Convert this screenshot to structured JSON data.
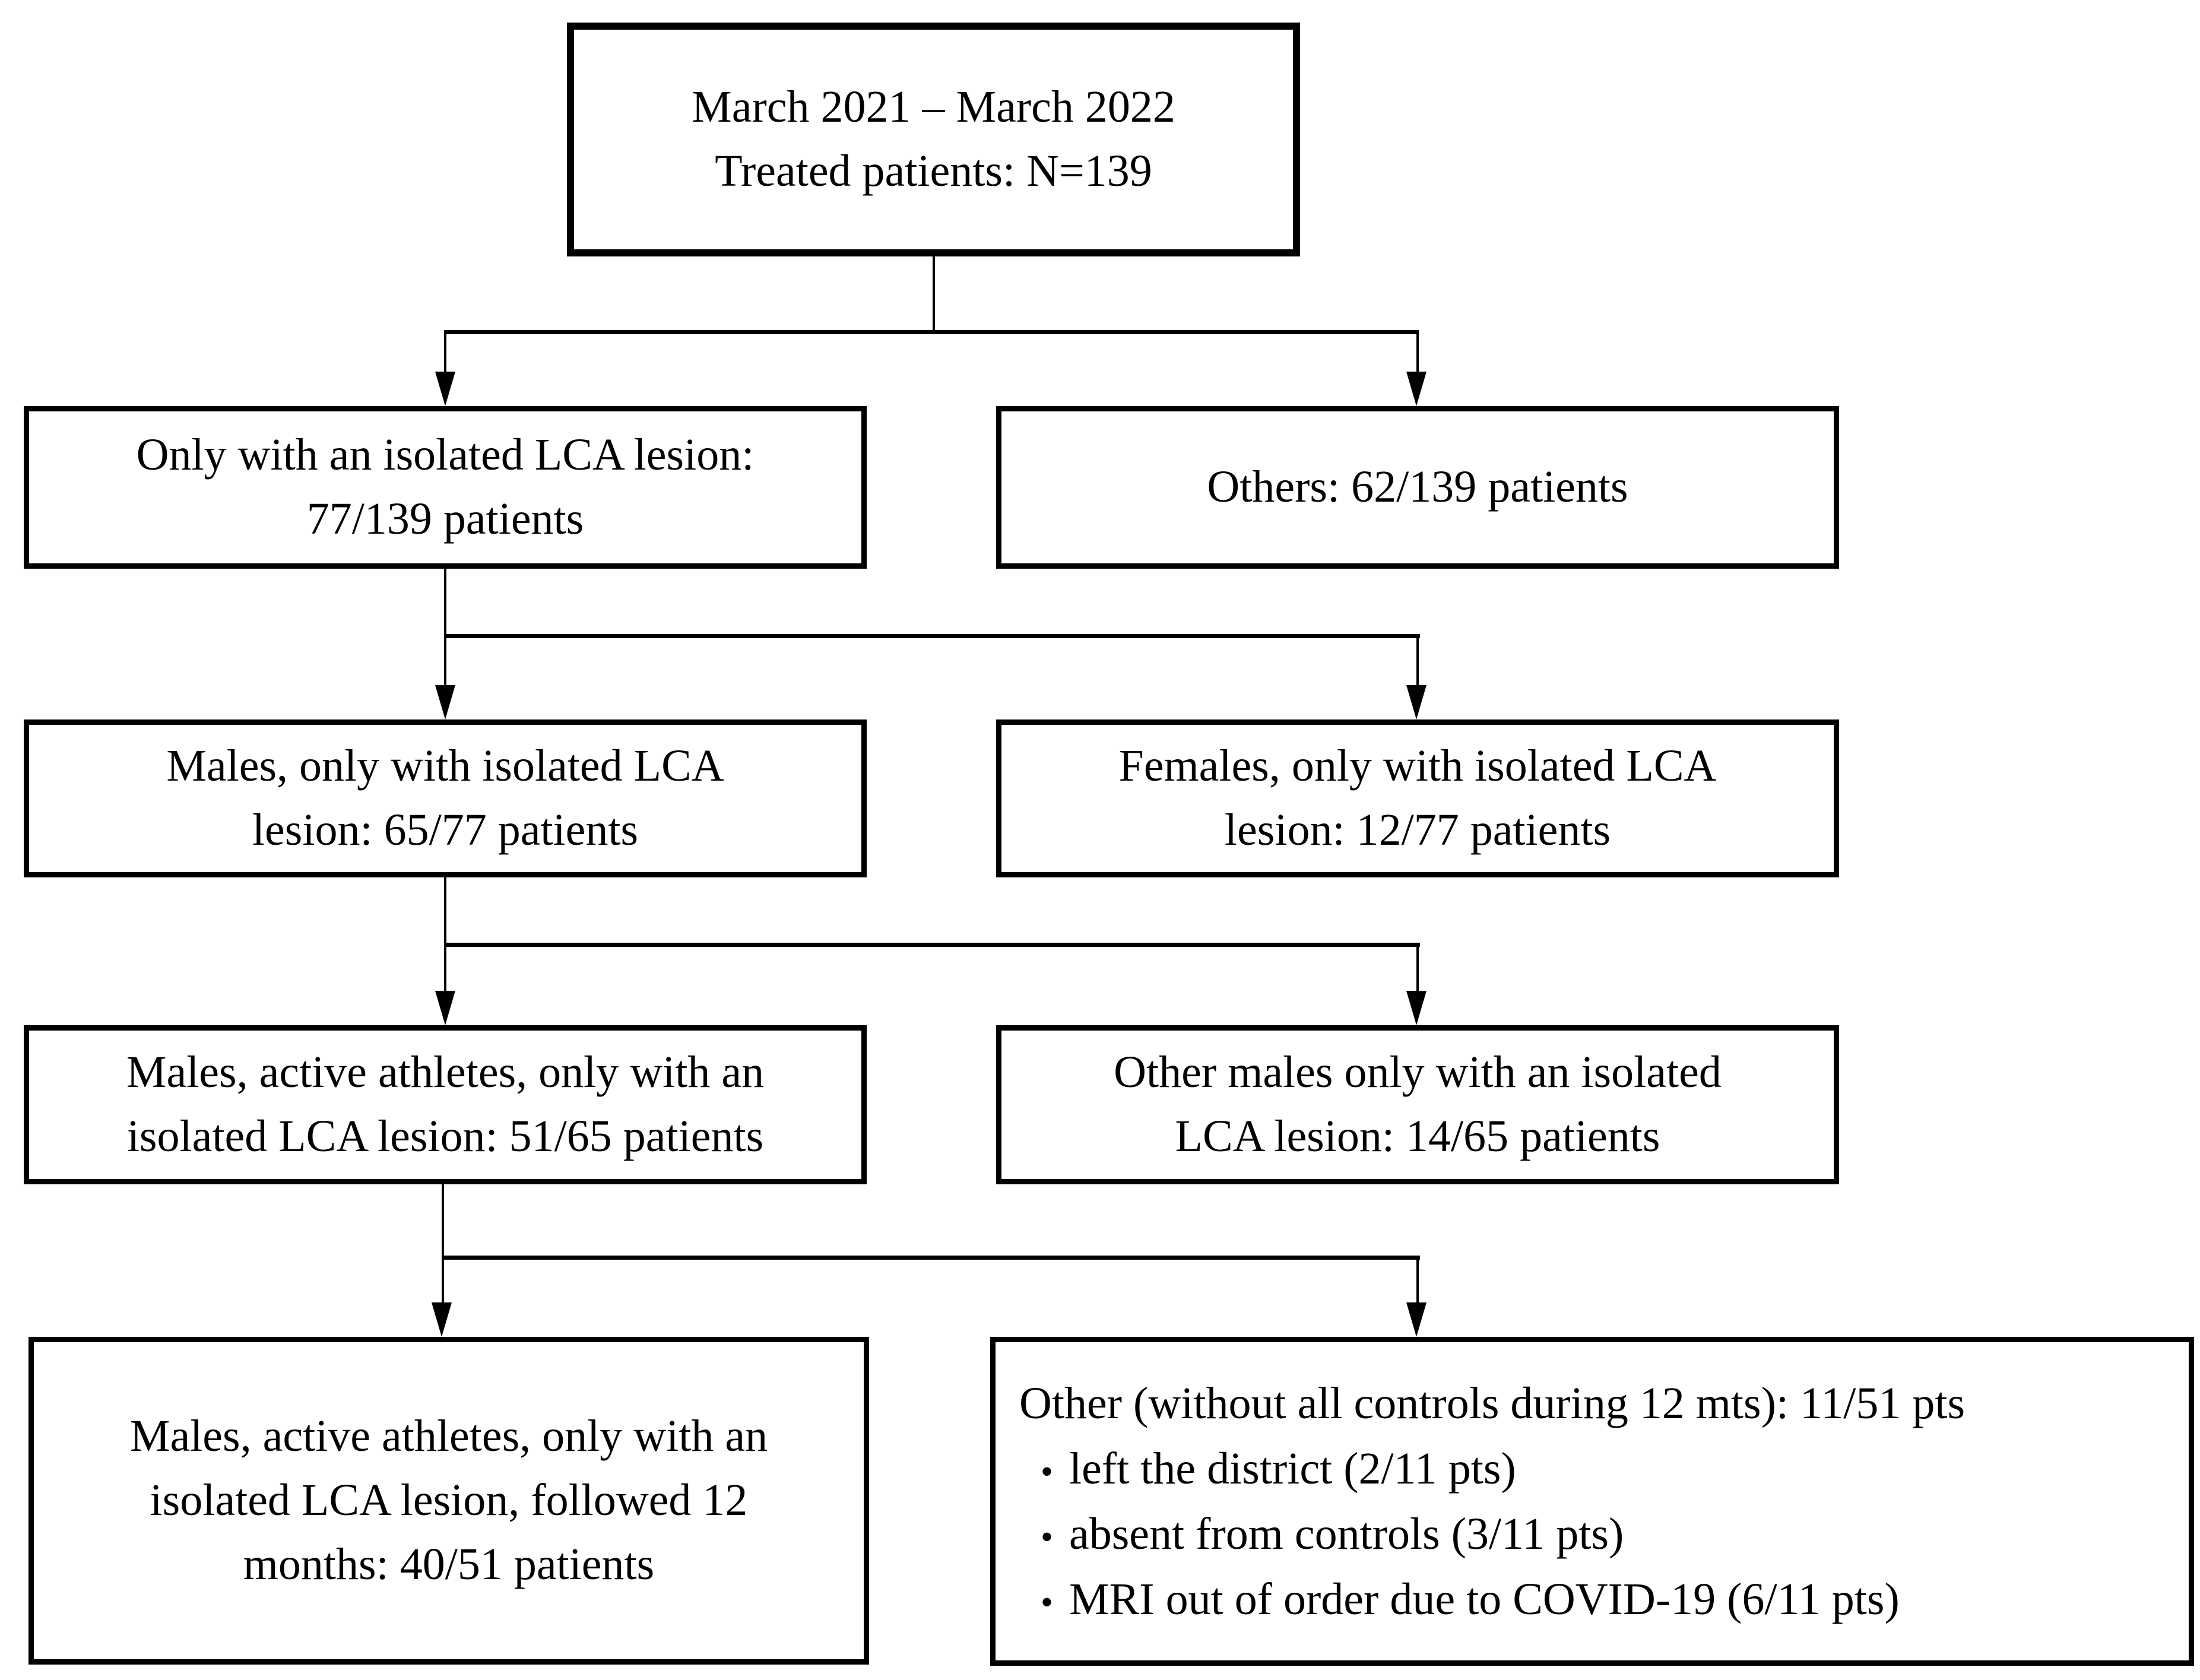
{
  "figure": {
    "type": "patient-flow-diagram",
    "colors": {
      "line": "#000000",
      "box_background": "#ffffff",
      "page_background": "#ffffff"
    }
  },
  "boxes": {
    "treated": {
      "line1": "March 2021 – March 2022",
      "line2": "Treated patients: N=139"
    },
    "isolated": {
      "line1": "Only with an isolated LCA lesion:",
      "line2": "77/139 patients"
    },
    "others": {
      "line1": "Others: 62/139 patients"
    },
    "males": {
      "line1": "Males, only with isolated LCA",
      "line2": "lesion: 65/77 patients"
    },
    "females": {
      "line1": "Females, only with isolated LCA",
      "line2": "lesion: 12/77 patients"
    },
    "male_athletes": {
      "line1": "Males, active athletes, only with an",
      "line2": "isolated LCA lesion: 51/65 patients"
    },
    "other_males": {
      "line1": "Other males only with an isolated",
      "line2": "LCA lesion: 14/65 patients"
    },
    "followed_12m": {
      "line1": "Males, active athletes, only with an",
      "line2": "isolated LCA lesion, followed 12",
      "line3": "months: 40/51 patients"
    },
    "without_controls": {
      "header": "Other (without all controls during 12 mts): 11/51 pts",
      "bullet_glyph": "•",
      "bullet1": "left the district (2/11 pts)",
      "bullet2": "absent from controls (3/11 pts)",
      "bullet3": "MRI out of order due to COVID-19 (6/11 pts)"
    }
  }
}
